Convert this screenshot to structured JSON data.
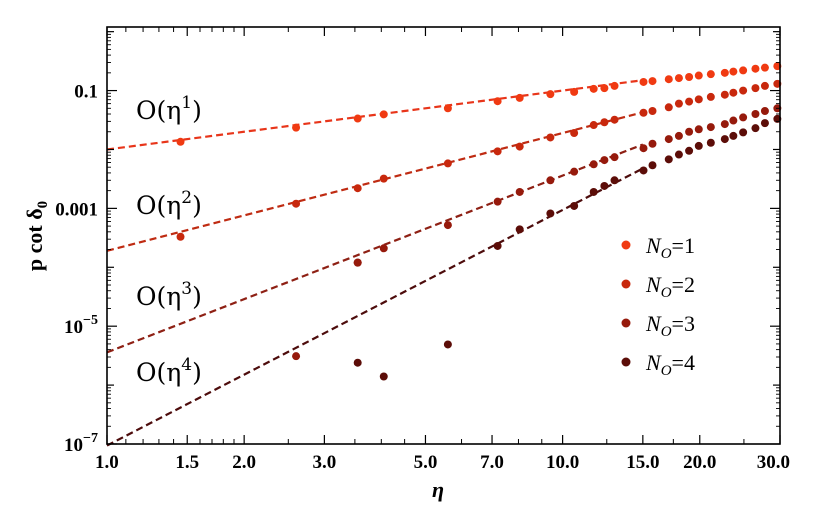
{
  "chart_data": {
    "type": "scatter",
    "xlabel": "η",
    "ylabel": "p cot δ",
    "ylabel_sub": "0",
    "xscale": "log",
    "yscale": "log",
    "xlim": [
      1.0,
      30.0
    ],
    "ylim": [
      1e-07,
      1.2
    ],
    "grid": false,
    "legend_position": "right",
    "x_ticks": [
      {
        "value": 1.0,
        "label": "1.0"
      },
      {
        "value": 1.5,
        "label": "1.5"
      },
      {
        "value": 2.0,
        "label": "2.0"
      },
      {
        "value": 3.0,
        "label": "3.0"
      },
      {
        "value": 5.0,
        "label": "5.0"
      },
      {
        "value": 7.0,
        "label": "7.0"
      },
      {
        "value": 10.0,
        "label": "10.0"
      },
      {
        "value": 15.0,
        "label": "15.0"
      },
      {
        "value": 20.0,
        "label": "20.0"
      },
      {
        "value": 30.0,
        "label": "30.0"
      }
    ],
    "y_ticks": [
      {
        "value": 1e-07,
        "base": "10",
        "exp": "−7"
      },
      {
        "value": 1e-05,
        "base": "10",
        "exp": "−5"
      },
      {
        "value": 0.001,
        "label": "0.001"
      },
      {
        "value": 0.1,
        "label": "0.1"
      }
    ],
    "series": [
      {
        "name_base": "N",
        "name_sub": "O",
        "name_rest": "=1",
        "color": "#f03a12",
        "x": [
          1.45,
          2.6,
          3.55,
          4.05,
          5.6,
          7.2,
          8.05,
          9.4,
          10.6,
          11.7,
          12.35,
          13.0,
          15.05,
          15.75,
          17.1,
          18.0,
          18.95,
          19.9,
          21.15,
          22.7,
          23.7,
          24.9,
          26.5,
          27.8,
          29.6
        ],
        "y": [
          0.0135,
          0.0235,
          0.0335,
          0.0395,
          0.05,
          0.066,
          0.075,
          0.087,
          0.095,
          0.107,
          0.11,
          0.12,
          0.14,
          0.145,
          0.156,
          0.163,
          0.17,
          0.18,
          0.19,
          0.2,
          0.21,
          0.22,
          0.235,
          0.245,
          0.26
        ]
      },
      {
        "name_base": "N",
        "name_sub": "O",
        "name_rest": "=2",
        "color": "#c8280d",
        "x": [
          1.45,
          2.6,
          3.55,
          4.05,
          5.6,
          7.2,
          8.05,
          9.4,
          10.6,
          11.7,
          12.35,
          13.0,
          15.05,
          15.75,
          17.1,
          18.0,
          18.95,
          19.9,
          21.15,
          22.7,
          23.7,
          24.9,
          26.5,
          27.8,
          29.6
        ],
        "y": [
          0.00033,
          0.0012,
          0.0022,
          0.0032,
          0.0058,
          0.0093,
          0.0112,
          0.016,
          0.019,
          0.026,
          0.029,
          0.032,
          0.042,
          0.045,
          0.052,
          0.06,
          0.065,
          0.071,
          0.078,
          0.085,
          0.092,
          0.1,
          0.11,
          0.12,
          0.13
        ]
      },
      {
        "name_base": "N",
        "name_sub": "O",
        "name_rest": "=3",
        "color": "#961a0c",
        "x": [
          2.6,
          3.55,
          3.55,
          4.05,
          5.6,
          7.2,
          8.05,
          9.4,
          10.6,
          11.7,
          12.35,
          13.0,
          15.05,
          15.75,
          17.1,
          18.0,
          18.95,
          19.9,
          21.15,
          22.7,
          23.7,
          24.9,
          26.5,
          27.8,
          29.6
        ],
        "y": [
          3.1e-06,
          0.00012,
          0.00012,
          0.00021,
          0.00052,
          0.0013,
          0.0019,
          0.003,
          0.0042,
          0.0056,
          0.0066,
          0.0074,
          0.0105,
          0.0125,
          0.015,
          0.017,
          0.02,
          0.022,
          0.024,
          0.027,
          0.031,
          0.035,
          0.04,
          0.045,
          0.05
        ]
      },
      {
        "name_base": "N",
        "name_sub": "O",
        "name_rest": "=4",
        "color": "#5c0d08",
        "x": [
          3.55,
          4.05,
          5.6,
          7.2,
          8.05,
          9.4,
          10.6,
          11.7,
          12.35,
          13.0,
          15.05,
          15.75,
          17.1,
          18.0,
          18.95,
          19.9,
          21.15,
          22.7,
          23.7,
          24.9,
          26.5,
          27.8,
          29.6
        ],
        "y": [
          2.4e-06,
          1.4e-06,
          4.9e-06,
          0.00023,
          0.00044,
          0.00082,
          0.0011,
          0.0019,
          0.0024,
          0.003,
          0.0044,
          0.0054,
          0.0068,
          0.0082,
          0.0095,
          0.0115,
          0.013,
          0.015,
          0.017,
          0.0195,
          0.023,
          0.028,
          0.033
        ]
      }
    ],
    "fit_lines": [
      {
        "order": 1,
        "color": "#e8351a",
        "from": [
          1.0,
          0.01
        ],
        "to": [
          15.0,
          0.15
        ]
      },
      {
        "order": 2,
        "color": "#bf2b12",
        "from": [
          1.0,
          0.00019
        ],
        "to": [
          15.0,
          0.0427
        ]
      },
      {
        "order": 3,
        "color": "#8e2014",
        "from": [
          1.0,
          3.6e-06
        ],
        "to": [
          15.0,
          0.01215
        ]
      },
      {
        "order": 4,
        "color": "#4d0c0c",
        "from": [
          1.0,
          9.4e-08
        ],
        "to": [
          15.0,
          0.00476
        ]
      }
    ],
    "annotations": [
      {
        "base": "O(η",
        "exp": "1",
        "close": ")"
      },
      {
        "base": "O(η",
        "exp": "2",
        "close": ")"
      },
      {
        "base": "O(η",
        "exp": "3",
        "close": ")"
      },
      {
        "base": "O(η",
        "exp": "4",
        "close": ")"
      }
    ]
  }
}
